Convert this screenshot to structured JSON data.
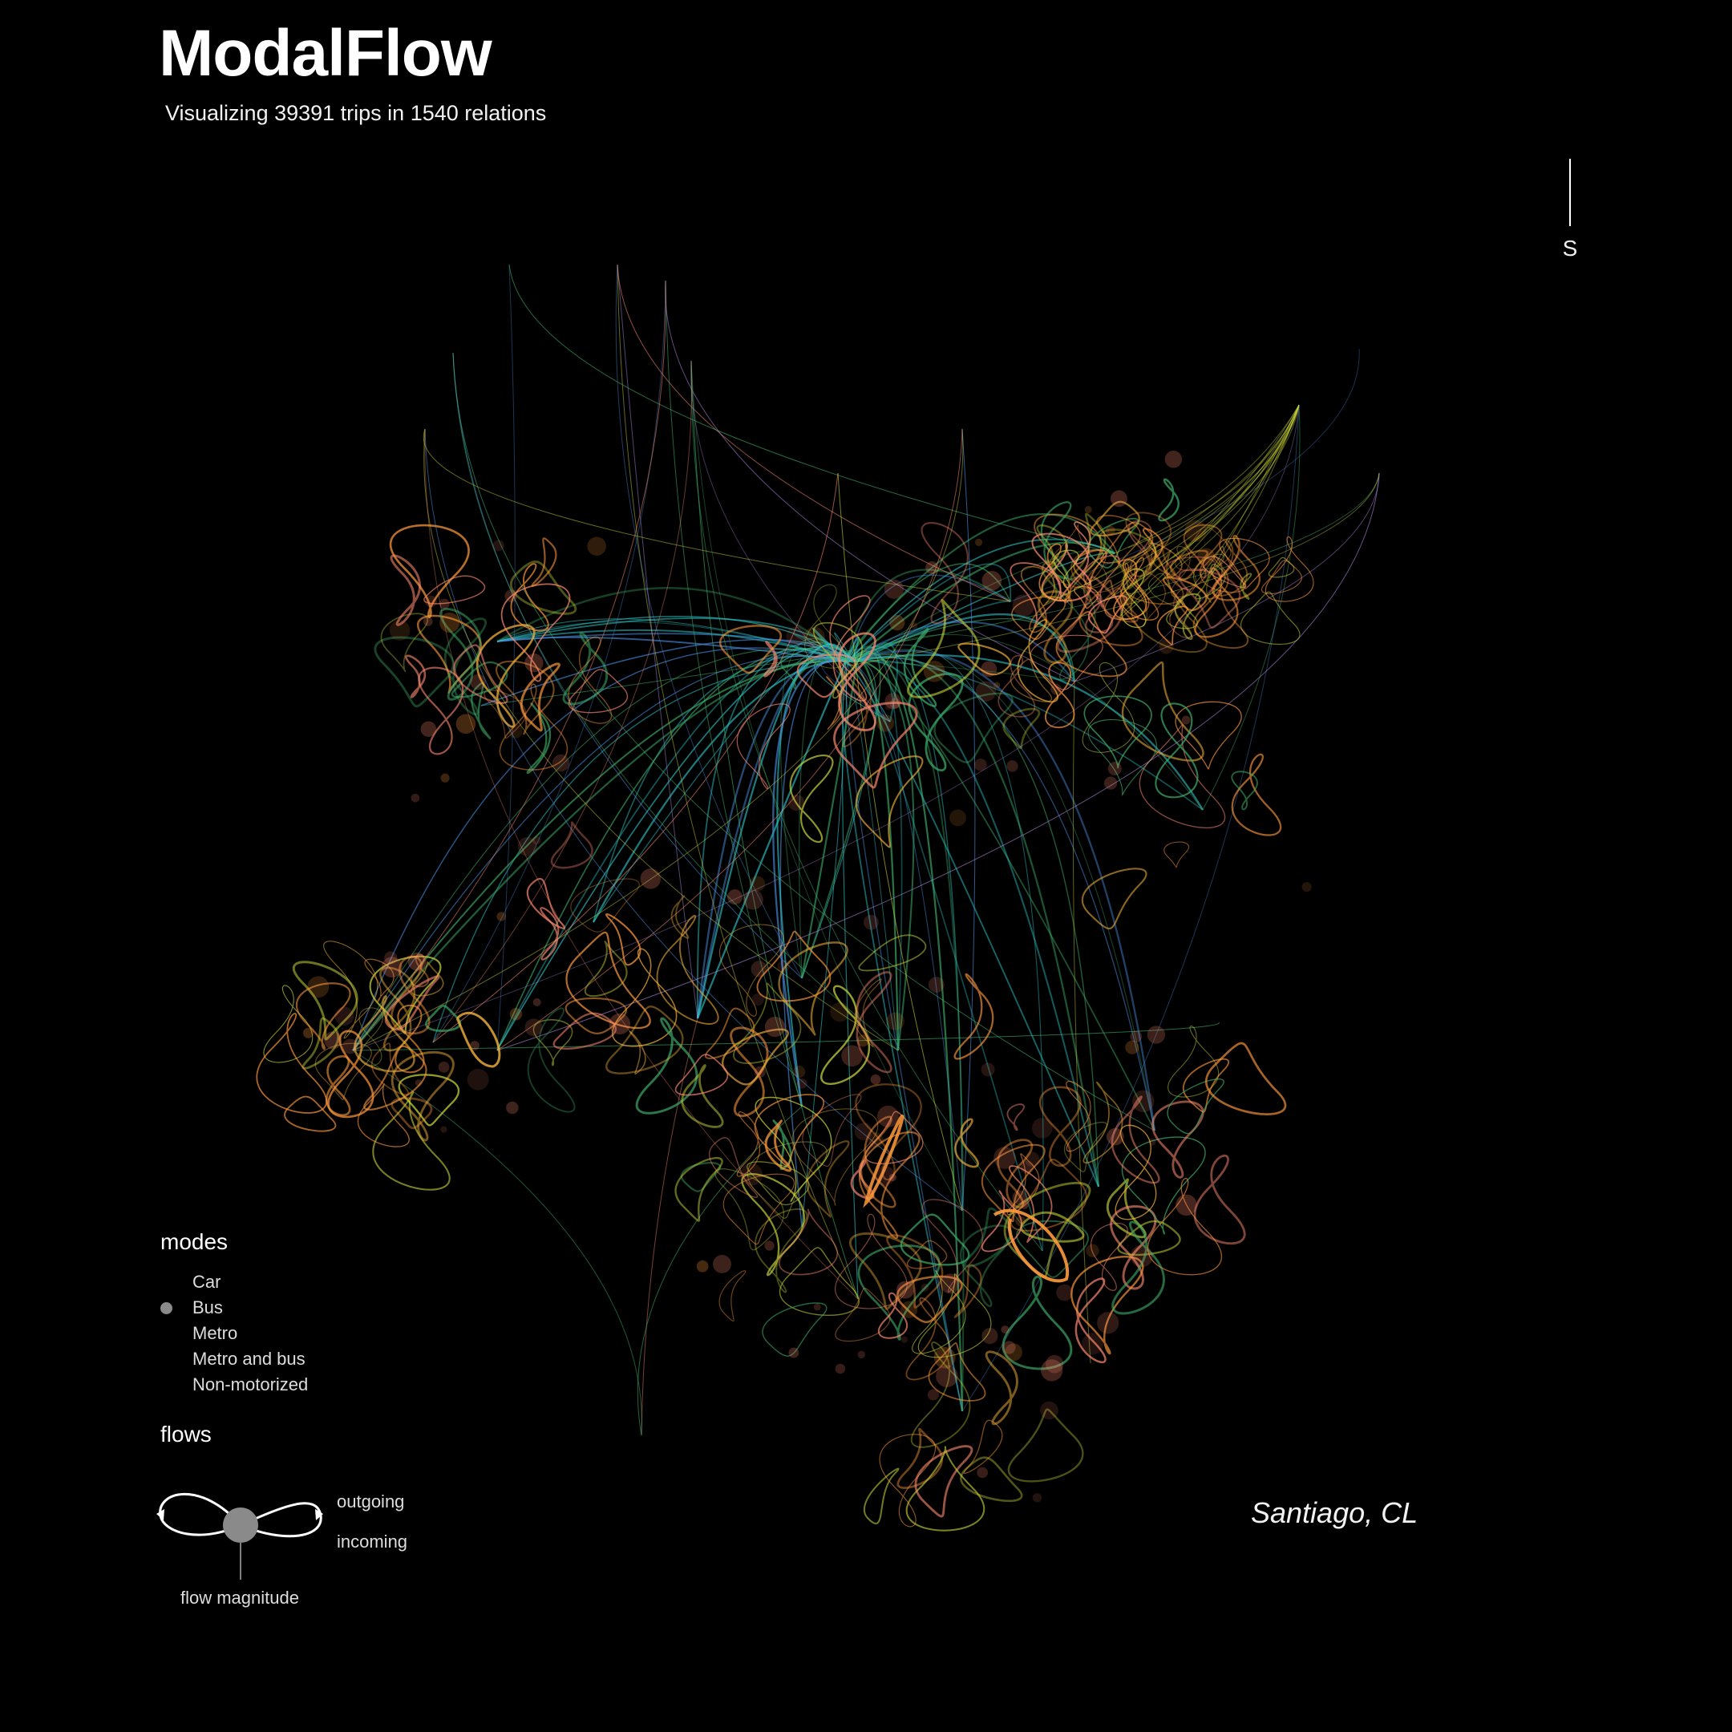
{
  "header": {
    "title": "ModalFlow",
    "subtitle": "Visualizing 39391 trips in 1540 relations"
  },
  "compass": {
    "label": "S"
  },
  "legend": {
    "modes_heading": "modes",
    "modes": [
      {
        "label": "Car",
        "selected": false
      },
      {
        "label": "Bus",
        "selected": true
      },
      {
        "label": "Metro",
        "selected": false
      },
      {
        "label": "Metro and bus",
        "selected": false
      },
      {
        "label": "Non-motorized",
        "selected": false
      }
    ],
    "flows_heading": "flows",
    "outgoing_label": "outgoing",
    "incoming_label": "incoming",
    "magnitude_label": "flow magnitude"
  },
  "location": "Santiago, CL",
  "palette": {
    "background": "#000000",
    "orange": "#ff9a3c",
    "amber": "#f5b43a",
    "salmon": "#ff8a70",
    "yellow_green": "#c8d43a",
    "green": "#3fae6a",
    "teal": "#2fc7c9",
    "blue": "#4a8fe0",
    "purple": "#b08ae0",
    "selected_dot": "#8a8a8a"
  }
}
